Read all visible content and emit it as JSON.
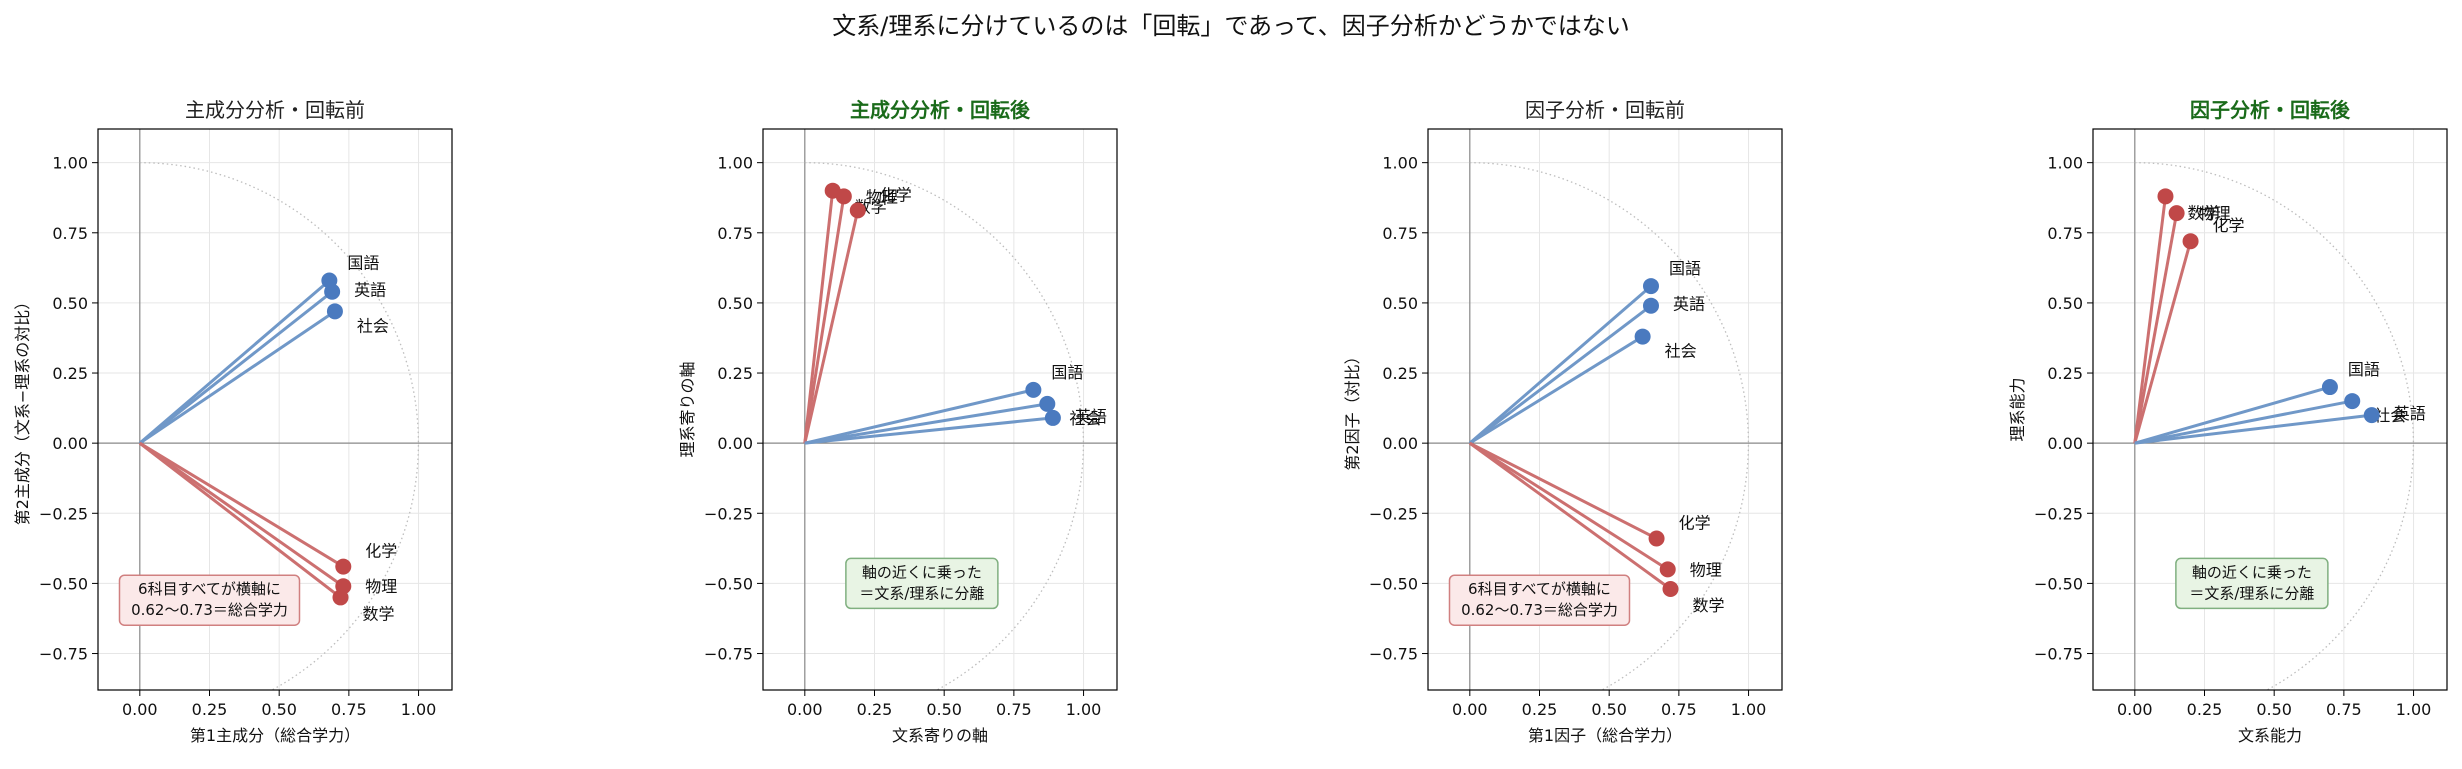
{
  "figure": {
    "suptitle": "文系/理系に分けているのは「回転」であって、因子分析かどうかではない"
  },
  "colors": {
    "humanities": "#4a7abf",
    "humanities_line": "#7098c8",
    "science": "#c04848",
    "science_line": "#cc7070",
    "highlight_title": "#1a6b1a",
    "note_red_bg": "#fbe9e9",
    "note_red_border": "#d08080",
    "note_green_bg": "#e8f4e4",
    "note_green_border": "#80b080"
  },
  "chart_data": [
    {
      "type": "scatter",
      "title": "主成分分析・回転前",
      "highlight": false,
      "xlabel": "第1主成分（総合学力）",
      "ylabel": "第2主成分（文系−理系の対比）",
      "xlim": [
        -0.15,
        1.12
      ],
      "ylim": [
        -0.88,
        1.12
      ],
      "xticks": [
        "0.00",
        "0.25",
        "0.50",
        "0.75",
        "1.00"
      ],
      "yticks": [
        "−0.75",
        "−0.50",
        "−0.25",
        "0.00",
        "0.25",
        "0.50",
        "0.75",
        "1.00"
      ],
      "grid": true,
      "unit_circle": true,
      "points": [
        {
          "label": "国語",
          "group": "humanities",
          "x": 0.68,
          "y": 0.58
        },
        {
          "label": "英語",
          "group": "humanities",
          "x": 0.69,
          "y": 0.54
        },
        {
          "label": "社会",
          "group": "humanities",
          "x": 0.7,
          "y": 0.47
        },
        {
          "label": "化学",
          "group": "science",
          "x": 0.73,
          "y": -0.44
        },
        {
          "label": "物理",
          "group": "science",
          "x": 0.73,
          "y": -0.51
        },
        {
          "label": "数学",
          "group": "science",
          "x": 0.72,
          "y": -0.55
        }
      ],
      "note": {
        "lines": [
          "6科目すべてが横軸に",
          "0.62〜0.73＝総合学力"
        ],
        "style": "red"
      }
    },
    {
      "type": "scatter",
      "title": "主成分分析・回転後",
      "highlight": true,
      "xlabel": "文系寄りの軸",
      "ylabel": "理系寄りの軸",
      "xlim": [
        -0.15,
        1.12
      ],
      "ylim": [
        -0.88,
        1.12
      ],
      "xticks": [
        "0.00",
        "0.25",
        "0.50",
        "0.75",
        "1.00"
      ],
      "yticks": [
        "−0.75",
        "−0.50",
        "−0.25",
        "0.00",
        "0.25",
        "0.50",
        "0.75",
        "1.00"
      ],
      "grid": true,
      "unit_circle": true,
      "points": [
        {
          "label": "数学",
          "group": "science",
          "x": 0.1,
          "y": 0.9
        },
        {
          "label": "物理",
          "group": "science",
          "x": 0.14,
          "y": 0.88
        },
        {
          "label": "化学",
          "group": "science",
          "x": 0.19,
          "y": 0.83
        },
        {
          "label": "国語",
          "group": "humanities",
          "x": 0.82,
          "y": 0.19
        },
        {
          "label": "社会",
          "group": "humanities",
          "x": 0.87,
          "y": 0.14
        },
        {
          "label": "英語",
          "group": "humanities",
          "x": 0.89,
          "y": 0.09
        }
      ],
      "note": {
        "lines": [
          "軸の近くに乗った",
          "＝文系/理系に分離"
        ],
        "style": "green"
      }
    },
    {
      "type": "scatter",
      "title": "因子分析・回転前",
      "highlight": false,
      "xlabel": "第1因子（総合学力）",
      "ylabel": "第2因子（対比）",
      "xlim": [
        -0.15,
        1.12
      ],
      "ylim": [
        -0.88,
        1.12
      ],
      "xticks": [
        "0.00",
        "0.25",
        "0.50",
        "0.75",
        "1.00"
      ],
      "yticks": [
        "−0.75",
        "−0.50",
        "−0.25",
        "0.00",
        "0.25",
        "0.50",
        "0.75",
        "1.00"
      ],
      "grid": true,
      "unit_circle": true,
      "points": [
        {
          "label": "国語",
          "group": "humanities",
          "x": 0.65,
          "y": 0.56
        },
        {
          "label": "英語",
          "group": "humanities",
          "x": 0.65,
          "y": 0.49
        },
        {
          "label": "社会",
          "group": "humanities",
          "x": 0.62,
          "y": 0.38
        },
        {
          "label": "化学",
          "group": "science",
          "x": 0.67,
          "y": -0.34
        },
        {
          "label": "物理",
          "group": "science",
          "x": 0.71,
          "y": -0.45
        },
        {
          "label": "数学",
          "group": "science",
          "x": 0.72,
          "y": -0.52
        }
      ],
      "note": {
        "lines": [
          "6科目すべてが横軸に",
          "0.62〜0.73＝総合学力"
        ],
        "style": "red"
      }
    },
    {
      "type": "scatter",
      "title": "因子分析・回転後",
      "highlight": true,
      "xlabel": "文系能力",
      "ylabel": "理系能力",
      "xlim": [
        -0.15,
        1.12
      ],
      "ylim": [
        -0.88,
        1.12
      ],
      "xticks": [
        "0.00",
        "0.25",
        "0.50",
        "0.75",
        "1.00"
      ],
      "yticks": [
        "−0.75",
        "−0.50",
        "−0.25",
        "0.00",
        "0.25",
        "0.50",
        "0.75",
        "1.00"
      ],
      "grid": true,
      "unit_circle": true,
      "points": [
        {
          "label": "数学",
          "group": "science",
          "x": 0.11,
          "y": 0.88
        },
        {
          "label": "物理",
          "group": "science",
          "x": 0.15,
          "y": 0.82
        },
        {
          "label": "化学",
          "group": "science",
          "x": 0.2,
          "y": 0.72
        },
        {
          "label": "国語",
          "group": "humanities",
          "x": 0.7,
          "y": 0.2
        },
        {
          "label": "社会",
          "group": "humanities",
          "x": 0.78,
          "y": 0.15
        },
        {
          "label": "英語",
          "group": "humanities",
          "x": 0.85,
          "y": 0.1
        }
      ],
      "note": {
        "lines": [
          "軸の近くに乗った",
          "＝文系/理系に分離"
        ],
        "style": "green"
      }
    }
  ]
}
